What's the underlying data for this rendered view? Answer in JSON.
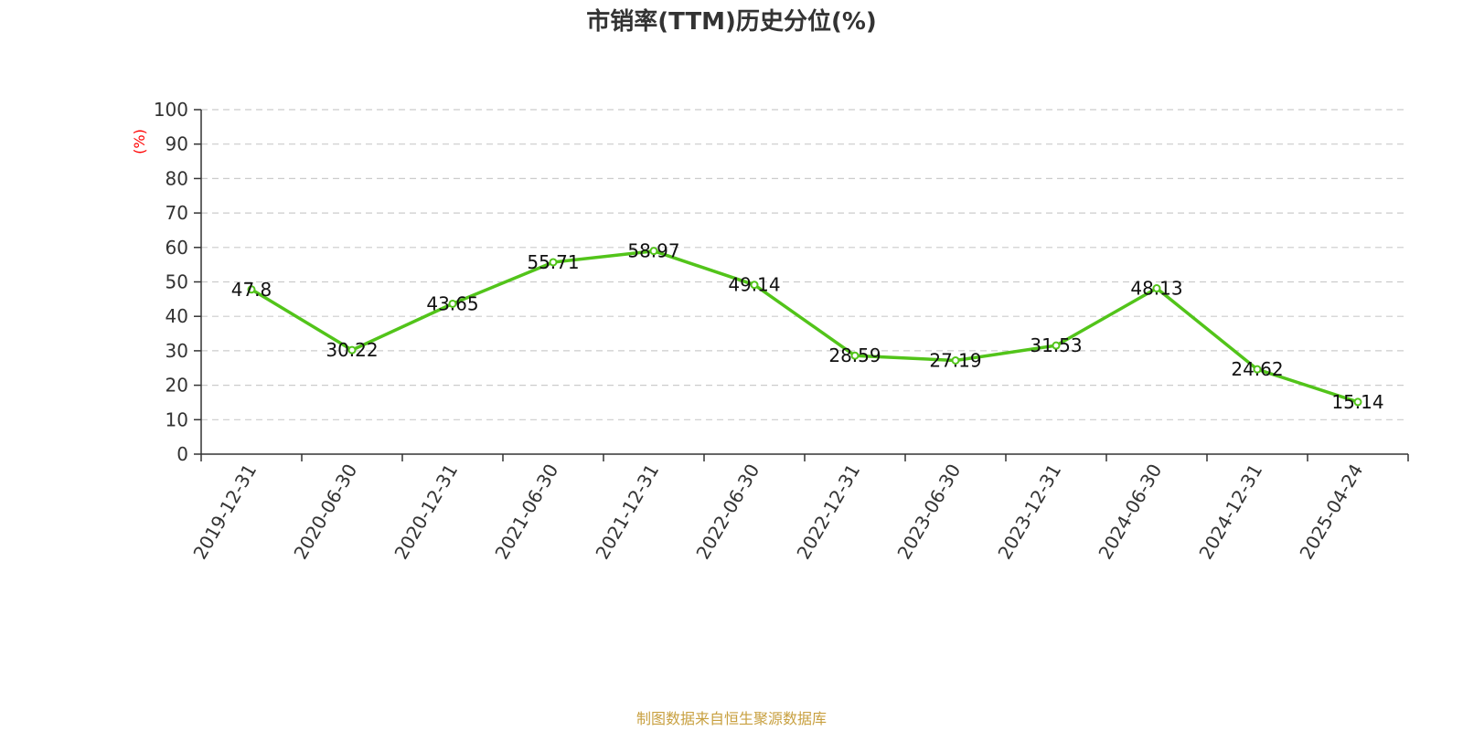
{
  "chart_data": {
    "type": "line",
    "title": "市销率(TTM)历史分位(%)",
    "ylabel": "(%)",
    "xlabel": "",
    "categories": [
      "2019-12-31",
      "2020-06-30",
      "2020-12-31",
      "2021-06-30",
      "2021-12-31",
      "2022-06-30",
      "2022-12-31",
      "2023-06-30",
      "2023-12-31",
      "2024-06-30",
      "2024-12-31",
      "2025-04-24"
    ],
    "series": [
      {
        "values": [
          47.8,
          30.22,
          43.65,
          55.71,
          58.97,
          49.14,
          28.59,
          27.19,
          31.53,
          48.13,
          24.62,
          15.14
        ],
        "value_labels": [
          "47.8",
          "30.22",
          "43.65",
          "55.71",
          "58.97",
          "49.14",
          "28.59",
          "27.19",
          "31.53",
          "48.13",
          "24.62",
          "15.14"
        ]
      }
    ],
    "ylim": [
      0,
      100
    ],
    "yticks": [
      "0",
      "10",
      "20",
      "30",
      "40",
      "50",
      "60",
      "70",
      "80",
      "90",
      "100"
    ],
    "grid": true,
    "legend": "none",
    "colors": {
      "line": "#52c41a",
      "ylabel": "#ff0000",
      "source": "#c8a040",
      "grid": "#cccccc",
      "axis": "#333333"
    }
  },
  "source_note": "制图数据来自恒生聚源数据库"
}
